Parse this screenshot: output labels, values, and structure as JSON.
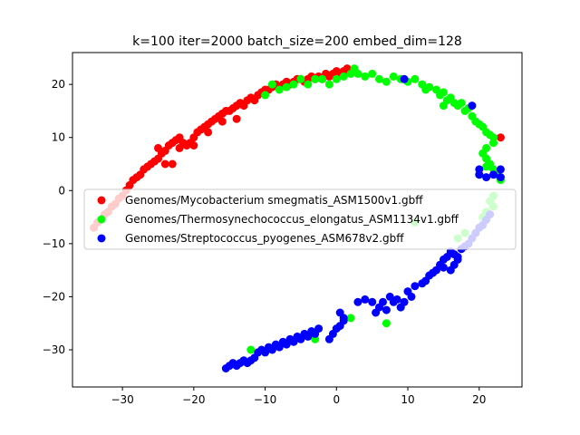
{
  "chart_data": {
    "type": "scatter",
    "title": "k=100 iter=2000 batch_size=200 embed_dim=128",
    "xlabel": "",
    "ylabel": "",
    "xlim": [
      -37,
      26
    ],
    "ylim": [
      -37,
      26
    ],
    "xticks": [
      -30,
      -20,
      -10,
      0,
      10,
      20
    ],
    "yticks": [
      -30,
      -20,
      -10,
      0,
      10,
      20
    ],
    "xtick_labels": [
      "−30",
      "−20",
      "−10",
      "0",
      "10",
      "20"
    ],
    "ytick_labels": [
      "−30",
      "−20",
      "−10",
      "0",
      "10",
      "20"
    ],
    "grid": false,
    "legend_position": "center-left",
    "series": [
      {
        "name": "Genomes/Mycobacterium smegmatis_ASM1500v1.gbff",
        "color": "#ff0000",
        "points": [
          [
            -34,
            -7
          ],
          [
            -33.5,
            -6
          ],
          [
            -33,
            -5.5
          ],
          [
            -32.5,
            -4.5
          ],
          [
            -32,
            -4
          ],
          [
            -31.5,
            -3
          ],
          [
            -31,
            -2.5
          ],
          [
            -30.5,
            -1.5
          ],
          [
            -30,
            -1
          ],
          [
            -29.5,
            0
          ],
          [
            -29,
            1
          ],
          [
            -28.5,
            2
          ],
          [
            -28,
            2.5
          ],
          [
            -27.5,
            3
          ],
          [
            -27,
            4
          ],
          [
            -26.5,
            4.5
          ],
          [
            -26,
            5
          ],
          [
            -25.5,
            5.5
          ],
          [
            -25,
            6
          ],
          [
            -24.5,
            7
          ],
          [
            -24,
            7.5
          ],
          [
            -23.5,
            8.5
          ],
          [
            -23,
            9
          ],
          [
            -22.5,
            9.5
          ],
          [
            -22,
            10
          ],
          [
            -21.5,
            9
          ],
          [
            -21,
            8.5
          ],
          [
            -20.5,
            9
          ],
          [
            -20,
            10
          ],
          [
            -19.5,
            11
          ],
          [
            -19,
            11.5
          ],
          [
            -18.5,
            12
          ],
          [
            -18,
            12.5
          ],
          [
            -17.5,
            13
          ],
          [
            -17,
            13.5
          ],
          [
            -16.5,
            14
          ],
          [
            -16,
            14.5
          ],
          [
            -15.5,
            15
          ],
          [
            -15,
            15
          ],
          [
            -14.5,
            15.5
          ],
          [
            -14,
            16
          ],
          [
            -13.5,
            16.5
          ],
          [
            -13,
            16
          ],
          [
            -12.5,
            17
          ],
          [
            -12,
            17.5
          ],
          [
            -11.5,
            17
          ],
          [
            -11,
            18
          ],
          [
            -10.5,
            18.5
          ],
          [
            -10,
            19
          ],
          [
            -9.5,
            19
          ],
          [
            -9,
            19.5
          ],
          [
            -8.5,
            20
          ],
          [
            -8,
            19.5
          ],
          [
            -7.5,
            20
          ],
          [
            -7,
            20.5
          ],
          [
            -6.5,
            20
          ],
          [
            -6,
            20.5
          ],
          [
            -5.5,
            21
          ],
          [
            -5,
            21
          ],
          [
            -4.5,
            20.5
          ],
          [
            -4,
            21
          ],
          [
            -3.5,
            21.5
          ],
          [
            -3,
            21
          ],
          [
            -2.5,
            21.5
          ],
          [
            -2,
            21
          ],
          [
            -1.5,
            22
          ],
          [
            -1,
            21.5
          ],
          [
            -0.5,
            22
          ],
          [
            0,
            22.5
          ],
          [
            0.5,
            22
          ],
          [
            1,
            22.5
          ],
          [
            1.5,
            23
          ],
          [
            2,
            22.5
          ],
          [
            -24,
            5
          ],
          [
            -23,
            5
          ],
          [
            -25,
            8
          ],
          [
            -22,
            8
          ],
          [
            -20,
            8.5
          ],
          [
            -18,
            11
          ],
          [
            -14,
            13.5
          ],
          [
            -16,
            13
          ],
          [
            23,
            10
          ]
        ]
      },
      {
        "name": "Genomes/Thermosynechococcus_elongatus_ASM1134v1.gbff",
        "color": "#00ff00",
        "points": [
          [
            -10,
            18
          ],
          [
            -9,
            20
          ],
          [
            -8,
            19
          ],
          [
            -7,
            19.5
          ],
          [
            -6,
            20
          ],
          [
            -5,
            21
          ],
          [
            -4,
            20
          ],
          [
            -3,
            21
          ],
          [
            -2,
            21
          ],
          [
            -1,
            20
          ],
          [
            0,
            21
          ],
          [
            1,
            21.5
          ],
          [
            2,
            22
          ],
          [
            2.5,
            23
          ],
          [
            3,
            22
          ],
          [
            4,
            21.5
          ],
          [
            5,
            22
          ],
          [
            6,
            21
          ],
          [
            7,
            20.5
          ],
          [
            8,
            21.5
          ],
          [
            9,
            21
          ],
          [
            10,
            20.5
          ],
          [
            11,
            21
          ],
          [
            12,
            20
          ],
          [
            12.5,
            19
          ],
          [
            13,
            19.5
          ],
          [
            14,
            19
          ],
          [
            14.5,
            18
          ],
          [
            15,
            18.5
          ],
          [
            15.5,
            17
          ],
          [
            16,
            17.5
          ],
          [
            16.5,
            16.5
          ],
          [
            15,
            16
          ],
          [
            17,
            16
          ],
          [
            17.5,
            16.5
          ],
          [
            18,
            15
          ],
          [
            18.5,
            15.5
          ],
          [
            19,
            14
          ],
          [
            19.5,
            13
          ],
          [
            20,
            12.5
          ],
          [
            20.5,
            12
          ],
          [
            21,
            11
          ],
          [
            21.5,
            10.5
          ],
          [
            22,
            10
          ],
          [
            22,
            9
          ],
          [
            21,
            8
          ],
          [
            20.5,
            7
          ],
          [
            21,
            6
          ],
          [
            21.5,
            5
          ],
          [
            22,
            4
          ],
          [
            22.5,
            3
          ],
          [
            23,
            2
          ],
          [
            21,
            4.5
          ],
          [
            20,
            3
          ],
          [
            22,
            -1
          ],
          [
            21.5,
            -2
          ],
          [
            22,
            -3
          ],
          [
            21,
            -4
          ],
          [
            20.5,
            -5
          ],
          [
            18,
            -8
          ],
          [
            17,
            -9
          ],
          [
            11,
            -6
          ],
          [
            -13,
            -32
          ],
          [
            -3,
            -28
          ],
          [
            2,
            -24
          ],
          [
            7,
            -25
          ],
          [
            9,
            -22
          ],
          [
            -12,
            -30
          ]
        ]
      },
      {
        "name": "Genomes/Streptococcus_pyogenes_ASM678v2.gbff",
        "color": "#0000ff",
        "points": [
          [
            -15.5,
            -33.5
          ],
          [
            -15,
            -33
          ],
          [
            -14.5,
            -32.5
          ],
          [
            -14,
            -33
          ],
          [
            -13.5,
            -32.5
          ],
          [
            -13,
            -32
          ],
          [
            -12.5,
            -32.5
          ],
          [
            -12,
            -32
          ],
          [
            -11.5,
            -31.5
          ],
          [
            -11,
            -30.5
          ],
          [
            -10.5,
            -30
          ],
          [
            -10,
            -30.5
          ],
          [
            -9.5,
            -29.5
          ],
          [
            -9,
            -30
          ],
          [
            -8.5,
            -29
          ],
          [
            -8,
            -29.5
          ],
          [
            -7.5,
            -28.5
          ],
          [
            -7,
            -29
          ],
          [
            -6.5,
            -28
          ],
          [
            -6,
            -28.5
          ],
          [
            -5.5,
            -27.5
          ],
          [
            -5,
            -28
          ],
          [
            -4.5,
            -27
          ],
          [
            -4,
            -27.5
          ],
          [
            -3.5,
            -26.5
          ],
          [
            -3,
            -27
          ],
          [
            -1,
            -28
          ],
          [
            -0.5,
            -27
          ],
          [
            0,
            -26
          ],
          [
            0.5,
            -25.5
          ],
          [
            1,
            -24
          ],
          [
            0.5,
            -23
          ],
          [
            1,
            -24.5
          ],
          [
            3,
            -21
          ],
          [
            4,
            -20.5
          ],
          [
            5,
            -21
          ],
          [
            5.5,
            -23
          ],
          [
            6,
            -22
          ],
          [
            6.5,
            -21
          ],
          [
            7,
            -22.5
          ],
          [
            7.5,
            -20
          ],
          [
            8,
            -21
          ],
          [
            8.5,
            -20.5
          ],
          [
            9,
            -22
          ],
          [
            9.5,
            -21
          ],
          [
            10,
            -19
          ],
          [
            10.5,
            -20
          ],
          [
            11,
            -18
          ],
          [
            12,
            -17.5
          ],
          [
            12.5,
            -17
          ],
          [
            13,
            -16
          ],
          [
            13.5,
            -15.5
          ],
          [
            14,
            -15
          ],
          [
            14.5,
            -14
          ],
          [
            15,
            -13
          ],
          [
            15.5,
            -12.5
          ],
          [
            16,
            -11.5
          ],
          [
            16.5,
            -12
          ],
          [
            17,
            -13
          ],
          [
            17.5,
            -11
          ],
          [
            18,
            -10.5
          ],
          [
            18.5,
            -10
          ],
          [
            19,
            -9
          ],
          [
            19.5,
            -8
          ],
          [
            20,
            -7
          ],
          [
            20.5,
            -6.5
          ],
          [
            21,
            -5.5
          ],
          [
            21.5,
            -4.5
          ],
          [
            16,
            -15
          ],
          [
            15,
            -14.5
          ],
          [
            16.5,
            -14
          ],
          [
            17,
            -12.5
          ],
          [
            20,
            4
          ],
          [
            20,
            3
          ],
          [
            21,
            2.5
          ],
          [
            22,
            3
          ],
          [
            23,
            4
          ],
          [
            23,
            2.5
          ],
          [
            9.5,
            21
          ],
          [
            19,
            16
          ],
          [
            -2.5,
            -26
          ]
        ]
      }
    ]
  }
}
